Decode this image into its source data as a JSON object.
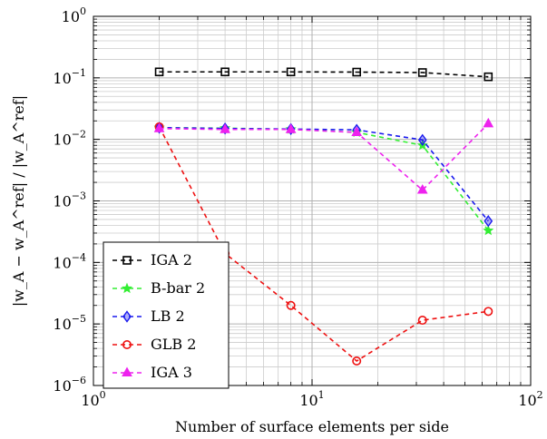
{
  "chart_data": {
    "type": "line",
    "xscale": "log",
    "yscale": "log",
    "xlim": [
      1,
      100
    ],
    "ylim": [
      1e-06,
      1
    ],
    "xlabel": "Number of surface elements per side",
    "ylabel": "|w_A − w_A^ref| / |w_A^ref|",
    "grid": true,
    "legend_position": "bottom-left",
    "x_ticks": [
      {
        "value": 1,
        "base": "10",
        "exp": "0"
      },
      {
        "value": 10,
        "base": "10",
        "exp": "1"
      },
      {
        "value": 100,
        "base": "10",
        "exp": "2"
      }
    ],
    "y_ticks": [
      {
        "value": 1,
        "base": "10",
        "exp": "0"
      },
      {
        "value": 0.1,
        "base": "10",
        "exp": "−1"
      },
      {
        "value": 0.01,
        "base": "10",
        "exp": "−2"
      },
      {
        "value": 0.001,
        "base": "10",
        "exp": "−3"
      },
      {
        "value": 0.0001,
        "base": "10",
        "exp": "−4"
      },
      {
        "value": 1e-05,
        "base": "10",
        "exp": "−5"
      },
      {
        "value": 1e-06,
        "base": "10",
        "exp": "−6"
      }
    ],
    "series": [
      {
        "name": "IGA 2",
        "color": "#000000",
        "marker": "square",
        "x": [
          2,
          4,
          8,
          16,
          32,
          64
        ],
        "y": [
          0.125,
          0.125,
          0.125,
          0.124,
          0.122,
          0.104
        ]
      },
      {
        "name": "B-bar 2",
        "color": "#33ee33",
        "marker": "star",
        "x": [
          2,
          4,
          8,
          16,
          32,
          64
        ],
        "y": [
          0.0155,
          0.0152,
          0.0146,
          0.013,
          0.008,
          0.00033
        ]
      },
      {
        "name": "LB 2",
        "color": "#1a1aee",
        "marker": "diamond",
        "x": [
          2,
          4,
          8,
          16,
          32,
          64
        ],
        "y": [
          0.0155,
          0.015,
          0.0147,
          0.0143,
          0.0098,
          0.00047
        ]
      },
      {
        "name": "GLB 2",
        "color": "#ee1111",
        "marker": "circle",
        "x": [
          2,
          4,
          8,
          16,
          32,
          64
        ],
        "y": [
          0.016,
          0.00014,
          2e-05,
          2.5e-06,
          1.15e-05,
          1.6e-05
        ]
      },
      {
        "name": "IGA 3",
        "color": "#ee22ee",
        "marker": "triangle",
        "x": [
          2,
          4,
          8,
          16,
          32,
          64
        ],
        "y": [
          0.015,
          0.0145,
          0.0145,
          0.013,
          0.0015,
          0.018
        ]
      }
    ]
  }
}
